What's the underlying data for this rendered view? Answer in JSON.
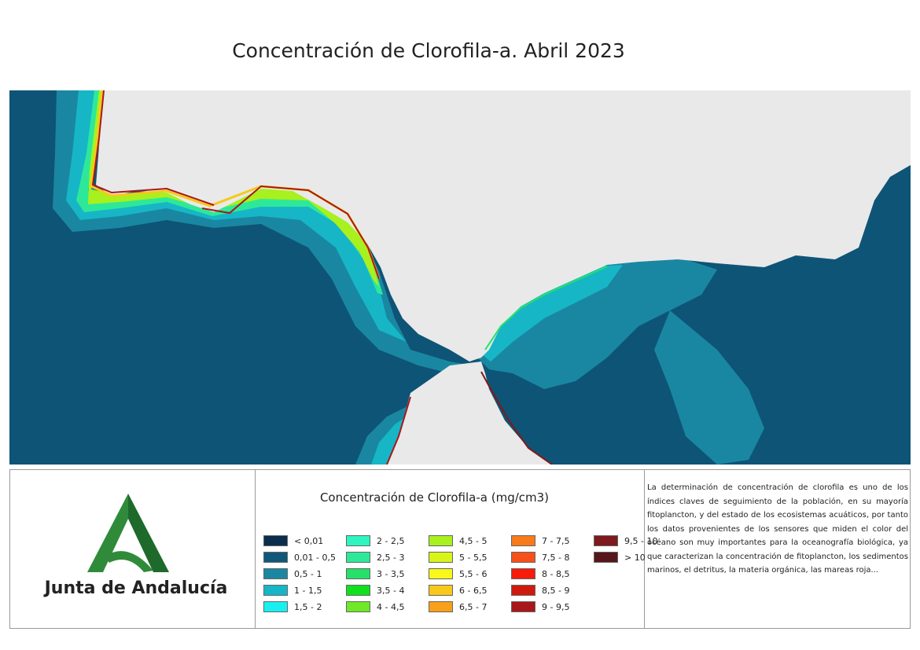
{
  "title": "Concentración de Clorofila-a. Abril 2023",
  "colors": {
    "ocean": "#0e5476",
    "land": "#e9e9e9",
    "coastal": "#1f8faa",
    "logo_green": "#2f8b3a"
  },
  "legend": {
    "title": "Concentración de Clorofila-a (mg/cm3)",
    "items": [
      {
        "label": "< 0,01",
        "color": "#0b2e4d"
      },
      {
        "label": "0,01 - 0,5",
        "color": "#10587a"
      },
      {
        "label": "0,5 - 1",
        "color": "#1a87a2"
      },
      {
        "label": "1 - 1,5",
        "color": "#16b6c6"
      },
      {
        "label": "1,5 - 2",
        "color": "#18f0f0"
      },
      {
        "label": "2 - 2,5",
        "color": "#2ff5c0"
      },
      {
        "label": "2,5 - 3",
        "color": "#2ee89a"
      },
      {
        "label": "3 - 3,5",
        "color": "#26e06a"
      },
      {
        "label": "3,5 - 4",
        "color": "#11e01e"
      },
      {
        "label": "4 - 4,5",
        "color": "#6ee827"
      },
      {
        "label": "4,5 - 5",
        "color": "#a8f01e"
      },
      {
        "label": "5 - 5,5",
        "color": "#d8f51a"
      },
      {
        "label": "5,5 - 6",
        "color": "#f8f81a"
      },
      {
        "label": "6 - 6,5",
        "color": "#f8c81a"
      },
      {
        "label": "6,5 - 7",
        "color": "#f8a01a"
      },
      {
        "label": "7 - 7,5",
        "color": "#f87a1a"
      },
      {
        "label": "7,5 - 8",
        "color": "#f8501a"
      },
      {
        "label": "8 - 8,5",
        "color": "#f81a0a"
      },
      {
        "label": "8,5 - 9",
        "color": "#d0190f"
      },
      {
        "label": "9 - 9,5",
        "color": "#a8181a"
      },
      {
        "label": "9,5 - 10",
        "color": "#7e1a1e"
      },
      {
        "label": "> 10",
        "color": "#55171b"
      }
    ]
  },
  "logo": {
    "org_name": "Junta de Andalucía"
  },
  "description": "La determinación de concentración de clorofila es uno de los índices claves de seguimiento de la población, en su mayoría fitoplancton, y del estado de los ecosistemas acuáticos, por tanto los datos provenientes de los sensores que miden el color del océano son muy importantes para la oceanografía biológica, ya que caracterizan la concentración de fitoplancton, los sedimentos marinos, el detritus, la materia orgánica, las mareas roja..."
}
